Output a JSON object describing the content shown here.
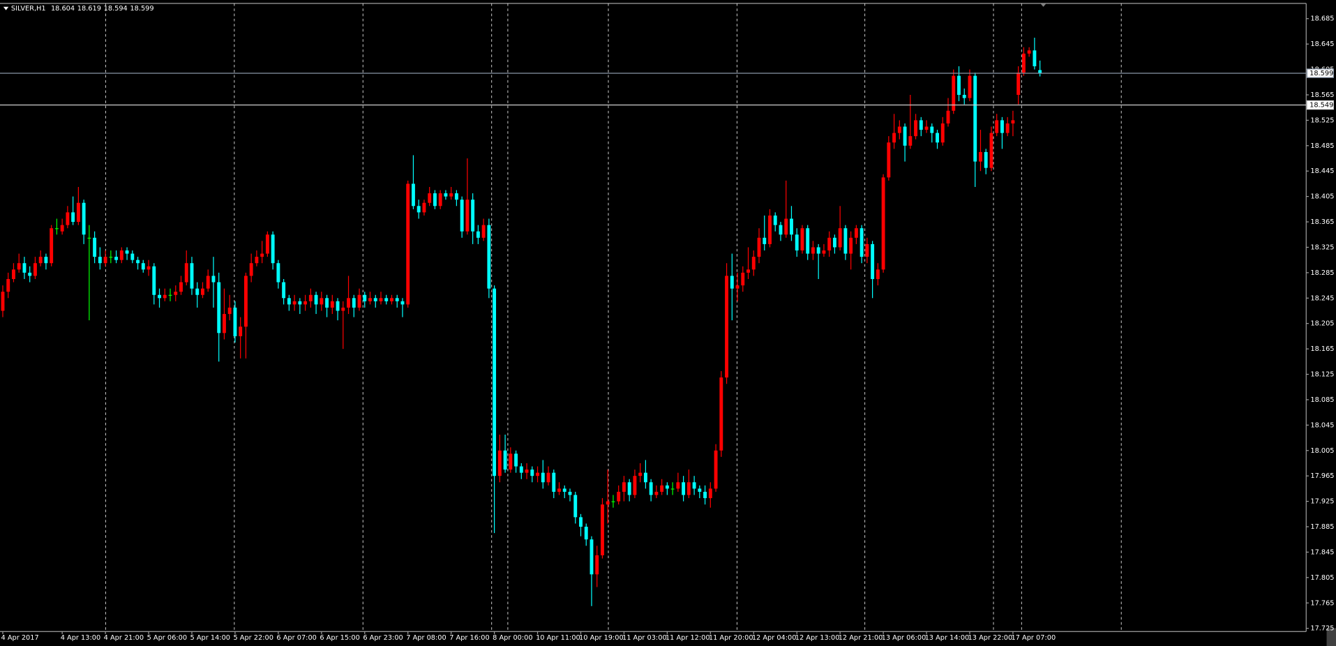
{
  "chart_data": {
    "type": "candlestick",
    "symbol": "SILVER,H1",
    "header_values": [
      18.604,
      18.619,
      18.594,
      18.599
    ],
    "colors": {
      "up": "#ff0000",
      "down": "#00ffff",
      "doji": "#00ff00"
    },
    "ylim": [
      17.72,
      18.709
    ],
    "yticks": [
      18.685,
      18.645,
      18.605,
      18.565,
      18.525,
      18.485,
      18.445,
      18.405,
      18.365,
      18.325,
      18.285,
      18.245,
      18.205,
      18.165,
      18.125,
      18.085,
      18.045,
      18.005,
      17.965,
      17.925,
      17.885,
      17.845,
      17.805,
      17.765,
      17.725
    ],
    "grid": false,
    "hlines": [
      {
        "value": 18.599,
        "color": "#8a97a8"
      },
      {
        "value": 18.549,
        "color": "#d0d0d0"
      }
    ],
    "categories": [
      "4 Apr 2017",
      null,
      null,
      null,
      null,
      null,
      null,
      null,
      null,
      null,
      null,
      "4 Apr 13:00",
      null,
      null,
      null,
      null,
      null,
      null,
      null,
      "4 Apr 21:00",
      null,
      null,
      null,
      null,
      null,
      null,
      null,
      "5 Apr 06:00",
      null,
      null,
      null,
      null,
      null,
      null,
      null,
      "5 Apr 14:00",
      null,
      null,
      null,
      null,
      null,
      null,
      null,
      "5 Apr 22:00",
      null,
      null,
      null,
      null,
      null,
      null,
      null,
      "6 Apr 07:00",
      null,
      null,
      null,
      null,
      null,
      null,
      null,
      "6 Apr 15:00",
      null,
      null,
      null,
      null,
      null,
      null,
      null,
      "6 Apr 23:00",
      null,
      null,
      null,
      null,
      null,
      null,
      null,
      "7 Apr 08:00",
      null,
      null,
      null,
      null,
      null,
      null,
      null,
      "7 Apr 16:00",
      null,
      null,
      null,
      null,
      null,
      null,
      null,
      "8 Apr 00:00",
      null,
      null,
      null,
      null,
      null,
      null,
      null,
      "10 Apr 11:00",
      null,
      null,
      null,
      null,
      null,
      null,
      null,
      "10 Apr 19:00",
      null,
      null,
      null,
      null,
      null,
      null,
      null,
      "11 Apr 03:00",
      null,
      null,
      null,
      null,
      null,
      null,
      null,
      "11 Apr 12:00",
      null,
      null,
      null,
      null,
      null,
      null,
      null,
      "11 Apr 20:00",
      null,
      null,
      null,
      null,
      null,
      null,
      null,
      "12 Apr 04:00",
      null,
      null,
      null,
      null,
      null,
      null,
      null,
      "12 Apr 13:00",
      null,
      null,
      null,
      null,
      null,
      null,
      null,
      "12 Apr 21:00",
      null,
      null,
      null,
      null,
      null,
      null,
      null,
      "13 Apr 06:00",
      null,
      null,
      null,
      null,
      null,
      null,
      null,
      "13 Apr 14:00",
      null,
      null,
      null,
      null,
      null,
      null,
      null,
      "13 Apr 22:00",
      null,
      null,
      null,
      null,
      null,
      null,
      null,
      "17 Apr 07:00",
      null,
      null,
      null,
      null,
      null
    ],
    "open": [
      18.225,
      18.255,
      18.275,
      18.29,
      18.3,
      18.285,
      18.28,
      18.3,
      18.31,
      18.3,
      18.355,
      18.35,
      18.36,
      18.38,
      18.365,
      18.395,
      18.34,
      18.34,
      18.31,
      18.3,
      18.31,
      18.31,
      18.305,
      18.32,
      18.315,
      18.305,
      18.3,
      18.29,
      18.295,
      18.25,
      18.245,
      18.25,
      18.25,
      18.255,
      18.27,
      18.3,
      18.26,
      18.25,
      18.26,
      18.28,
      18.27,
      18.19,
      18.22,
      18.23,
      18.185,
      18.2,
      18.28,
      18.3,
      18.31,
      18.315,
      18.345,
      18.3,
      18.27,
      18.245,
      18.235,
      18.24,
      18.235,
      18.24,
      18.25,
      18.235,
      18.245,
      18.23,
      18.24,
      18.225,
      18.23,
      18.245,
      18.23,
      18.25,
      18.24,
      18.245,
      18.24,
      18.245,
      18.24,
      18.245,
      18.24,
      18.235,
      18.425,
      18.39,
      18.38,
      18.395,
      18.41,
      18.39,
      18.41,
      18.405,
      18.41,
      18.4,
      18.35,
      18.4,
      18.35,
      18.34,
      18.36,
      18.26,
      17.965,
      18.005,
      17.975,
      18.0,
      17.98,
      17.97,
      17.975,
      17.965,
      17.97,
      17.955,
      17.97,
      17.94,
      17.945,
      17.94,
      17.935,
      17.9,
      17.885,
      17.865,
      17.81,
      17.84,
      17.92,
      17.925,
      17.925,
      17.94,
      17.955,
      17.935,
      17.965,
      17.97,
      17.955,
      17.935,
      17.94,
      17.95,
      17.945,
      17.945,
      17.955,
      17.935,
      17.955,
      17.945,
      17.94,
      17.93,
      17.945,
      18.005,
      18.12,
      18.28,
      18.26,
      18.265,
      18.285,
      18.29,
      18.31,
      18.34,
      18.33,
      18.375,
      18.36,
      18.345,
      18.37,
      18.345,
      18.32,
      18.355,
      18.315,
      18.325,
      18.315,
      18.32,
      18.34,
      18.325,
      18.355,
      18.315,
      18.34,
      18.355,
      18.31,
      18.33,
      18.275,
      18.29,
      18.435,
      18.49,
      18.505,
      18.515,
      18.485,
      18.5,
      18.525,
      18.51,
      18.515,
      18.505,
      18.49,
      18.52,
      18.54,
      18.595,
      18.565,
      18.56,
      18.595,
      18.46,
      18.475,
      18.45,
      18.505,
      18.525,
      18.505,
      18.52,
      18.565,
      18.6,
      18.63,
      18.635,
      18.604
    ],
    "high": [
      18.265,
      18.285,
      18.3,
      18.315,
      18.31,
      18.295,
      18.31,
      18.32,
      18.315,
      18.36,
      18.37,
      18.37,
      18.39,
      18.405,
      18.42,
      18.4,
      18.36,
      18.35,
      18.325,
      18.32,
      18.32,
      18.32,
      18.325,
      18.325,
      18.32,
      18.31,
      18.305,
      18.305,
      18.3,
      18.26,
      18.26,
      18.26,
      18.265,
      18.28,
      18.32,
      18.31,
      18.27,
      18.27,
      18.29,
      18.31,
      18.285,
      18.26,
      18.25,
      18.24,
      18.215,
      18.285,
      18.315,
      18.32,
      18.335,
      18.35,
      18.35,
      18.305,
      18.275,
      18.25,
      18.25,
      18.245,
      18.25,
      18.26,
      18.255,
      18.255,
      18.25,
      18.25,
      18.245,
      18.24,
      18.28,
      18.25,
      18.26,
      18.255,
      18.255,
      18.25,
      18.255,
      18.25,
      18.25,
      18.25,
      18.245,
      18.43,
      18.47,
      18.4,
      18.4,
      18.42,
      18.415,
      18.415,
      18.415,
      18.42,
      18.415,
      18.405,
      18.465,
      18.41,
      18.36,
      18.37,
      18.37,
      18.265,
      18.03,
      18.03,
      18.01,
      18.005,
      17.985,
      17.985,
      17.98,
      17.98,
      17.99,
      17.98,
      17.975,
      17.955,
      17.95,
      17.945,
      17.94,
      17.905,
      17.89,
      17.87,
      17.855,
      17.93,
      17.975,
      17.935,
      17.95,
      17.965,
      17.96,
      17.975,
      17.985,
      17.99,
      17.96,
      17.95,
      17.96,
      17.955,
      17.955,
      17.97,
      17.965,
      17.975,
      17.965,
      17.95,
      17.95,
      17.955,
      18.015,
      18.13,
      18.3,
      18.315,
      18.285,
      18.295,
      18.325,
      18.32,
      18.355,
      18.375,
      18.385,
      18.38,
      18.365,
      18.43,
      18.39,
      18.355,
      18.36,
      18.36,
      18.335,
      18.33,
      18.33,
      18.35,
      18.345,
      18.39,
      18.36,
      18.35,
      18.36,
      18.36,
      18.34,
      18.335,
      18.3,
      18.44,
      18.5,
      18.535,
      18.525,
      18.52,
      18.565,
      18.535,
      18.53,
      18.525,
      18.52,
      18.51,
      18.53,
      18.56,
      18.605,
      18.61,
      18.575,
      18.605,
      18.6,
      18.51,
      18.48,
      18.515,
      18.535,
      18.53,
      18.53,
      18.54,
      18.61,
      18.64,
      18.64,
      18.655,
      18.619
    ],
    "low": [
      18.215,
      18.245,
      18.27,
      18.285,
      18.275,
      18.27,
      18.275,
      18.295,
      18.29,
      18.295,
      18.345,
      18.345,
      18.355,
      18.36,
      18.36,
      18.33,
      18.21,
      18.3,
      18.29,
      18.295,
      18.3,
      18.3,
      18.3,
      18.305,
      18.3,
      18.29,
      18.285,
      18.28,
      18.235,
      18.23,
      18.24,
      18.24,
      18.24,
      18.25,
      18.265,
      18.25,
      18.23,
      18.245,
      18.255,
      18.23,
      18.145,
      18.18,
      18.21,
      18.175,
      18.15,
      18.15,
      18.27,
      18.295,
      18.3,
      18.31,
      18.29,
      18.26,
      18.235,
      18.225,
      18.225,
      18.22,
      18.225,
      18.23,
      18.22,
      18.225,
      18.215,
      18.22,
      18.21,
      18.165,
      18.22,
      18.215,
      18.225,
      18.23,
      18.235,
      18.23,
      18.235,
      18.235,
      18.235,
      18.23,
      18.215,
      18.23,
      18.385,
      18.37,
      18.375,
      18.39,
      18.385,
      18.385,
      18.4,
      18.4,
      18.39,
      18.34,
      18.345,
      18.33,
      18.33,
      18.335,
      18.245,
      17.875,
      17.955,
      17.97,
      17.97,
      17.97,
      17.96,
      17.96,
      17.955,
      17.955,
      17.945,
      17.95,
      17.93,
      17.935,
      17.93,
      17.925,
      17.89,
      17.87,
      17.855,
      17.76,
      17.79,
      17.835,
      17.89,
      17.915,
      17.92,
      17.925,
      17.925,
      17.93,
      17.955,
      17.945,
      17.925,
      17.93,
      17.935,
      17.935,
      17.935,
      17.94,
      17.925,
      17.93,
      17.935,
      17.93,
      17.92,
      17.915,
      17.94,
      17.995,
      18.11,
      18.21,
      18.24,
      18.255,
      18.275,
      18.28,
      18.3,
      18.32,
      18.325,
      18.35,
      18.335,
      18.34,
      18.335,
      18.31,
      18.315,
      18.305,
      18.305,
      18.275,
      18.31,
      18.31,
      18.315,
      18.32,
      18.305,
      18.29,
      18.33,
      18.3,
      18.3,
      18.245,
      18.265,
      18.285,
      18.43,
      18.48,
      18.495,
      18.46,
      18.48,
      18.495,
      18.5,
      18.505,
      18.49,
      18.48,
      18.485,
      18.515,
      18.535,
      18.555,
      18.55,
      18.555,
      18.42,
      18.445,
      18.44,
      18.445,
      18.5,
      18.48,
      18.5,
      18.5,
      18.55,
      18.595,
      18.625,
      18.605,
      18.594
    ],
    "close": [
      18.255,
      18.275,
      18.29,
      18.3,
      18.285,
      18.28,
      18.3,
      18.31,
      18.3,
      18.355,
      18.355,
      18.36,
      18.38,
      18.365,
      18.395,
      18.345,
      18.34,
      18.31,
      18.3,
      18.31,
      18.31,
      18.305,
      18.32,
      18.315,
      18.305,
      18.3,
      18.29,
      18.295,
      18.25,
      18.245,
      18.25,
      18.25,
      18.255,
      18.27,
      18.3,
      18.26,
      18.25,
      18.26,
      18.28,
      18.27,
      18.19,
      18.22,
      18.23,
      18.185,
      18.2,
      18.28,
      18.3,
      18.31,
      18.315,
      18.345,
      18.3,
      18.27,
      18.245,
      18.235,
      18.24,
      18.235,
      18.24,
      18.25,
      18.235,
      18.245,
      18.23,
      18.24,
      18.225,
      18.23,
      18.245,
      18.23,
      18.25,
      18.24,
      18.245,
      18.24,
      18.245,
      18.24,
      18.245,
      18.24,
      18.235,
      18.425,
      18.39,
      18.38,
      18.395,
      18.41,
      18.39,
      18.41,
      18.405,
      18.41,
      18.4,
      18.35,
      18.4,
      18.35,
      18.34,
      18.36,
      18.26,
      17.965,
      18.005,
      17.975,
      18.0,
      17.98,
      17.97,
      17.975,
      17.965,
      17.97,
      17.955,
      17.97,
      17.94,
      17.945,
      17.94,
      17.935,
      17.9,
      17.885,
      17.865,
      17.81,
      17.84,
      17.92,
      17.925,
      17.925,
      17.94,
      17.955,
      17.935,
      17.965,
      17.97,
      17.955,
      17.935,
      17.94,
      17.95,
      17.945,
      17.945,
      17.955,
      17.935,
      17.955,
      17.945,
      17.94,
      17.93,
      17.945,
      18.005,
      18.12,
      18.28,
      18.26,
      18.265,
      18.285,
      18.29,
      18.31,
      18.34,
      18.33,
      18.375,
      18.36,
      18.345,
      18.37,
      18.345,
      18.32,
      18.355,
      18.315,
      18.325,
      18.315,
      18.32,
      18.34,
      18.325,
      18.355,
      18.315,
      18.34,
      18.355,
      18.31,
      18.33,
      18.275,
      18.29,
      18.435,
      18.49,
      18.505,
      18.515,
      18.485,
      18.5,
      18.525,
      18.51,
      18.515,
      18.505,
      18.49,
      18.52,
      18.54,
      18.595,
      18.565,
      18.56,
      18.595,
      18.46,
      18.475,
      18.45,
      18.505,
      18.525,
      18.505,
      18.52,
      18.525,
      18.6,
      18.63,
      18.635,
      18.61,
      18.599
    ]
  }
}
